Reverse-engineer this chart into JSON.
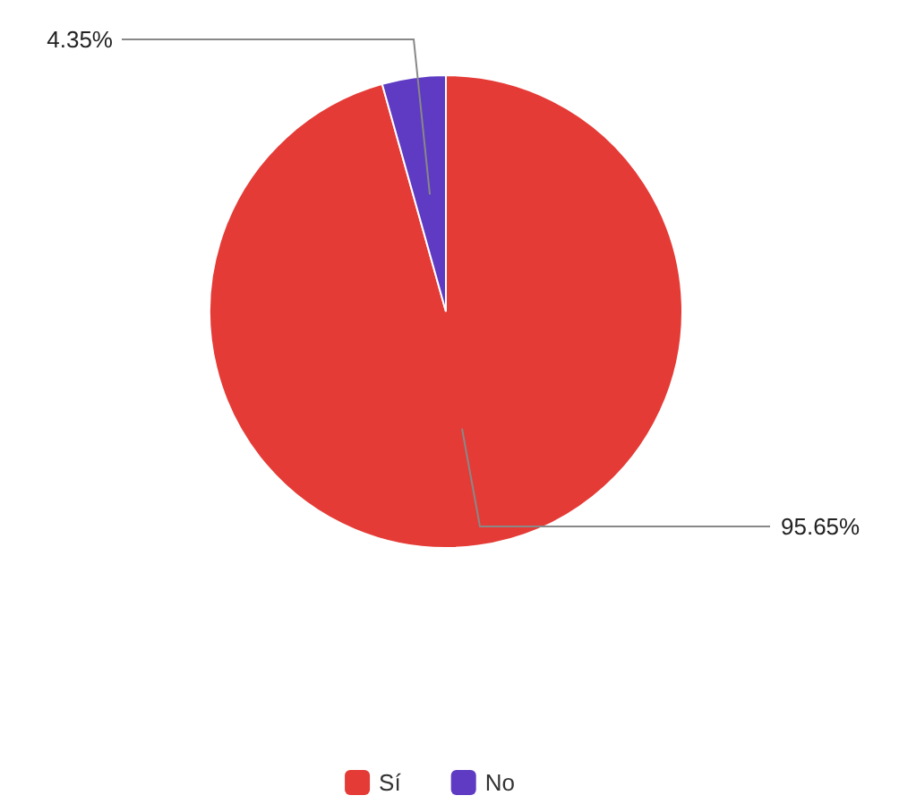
{
  "chart_data": {
    "type": "pie",
    "categories": [
      "Sí",
      "No"
    ],
    "values": [
      95.65,
      4.35
    ],
    "colors": [
      "#e53b36",
      "#5e3bc2"
    ],
    "value_labels": [
      "95.65%",
      "4.35%"
    ],
    "legend": "bottom"
  }
}
